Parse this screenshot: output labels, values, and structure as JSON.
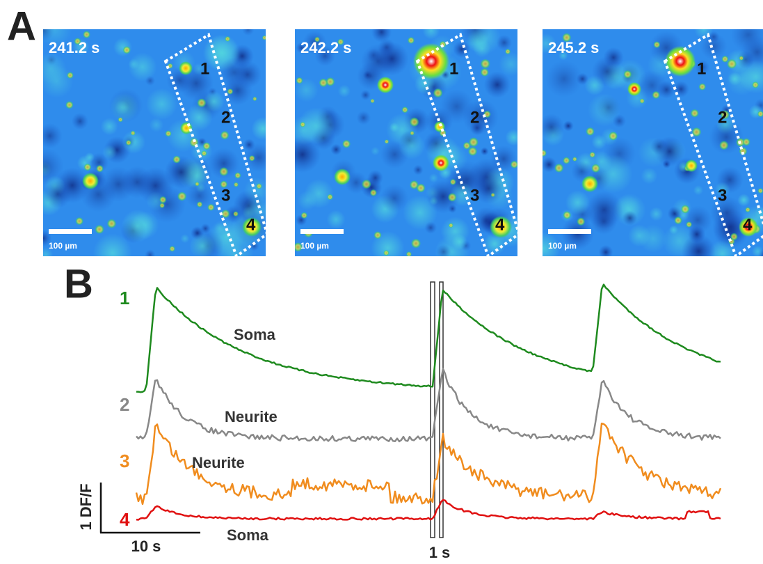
{
  "panel_a": {
    "label": "A",
    "images": [
      {
        "time": "241.2 s",
        "rois": [
          "1",
          "2",
          "3",
          "4"
        ],
        "scale_bar": "100 µm"
      },
      {
        "time": "242.2 s",
        "rois": [
          "1",
          "2",
          "3",
          "4"
        ],
        "scale_bar": "100 µm"
      },
      {
        "time": "245.2 s",
        "rois": [
          "1",
          "2",
          "3",
          "4"
        ],
        "scale_bar": "100 µm"
      }
    ]
  },
  "panel_b": {
    "label": "B",
    "traces": [
      {
        "number": "1",
        "label": "Soma"
      },
      {
        "number": "2",
        "label": "Neurite"
      },
      {
        "number": "3",
        "label": "Neurite"
      },
      {
        "number": "4",
        "label": "Soma"
      }
    ],
    "scale_bars": {
      "y": "1 DF/F",
      "x": "10 s",
      "inset": "1 s"
    }
  }
}
